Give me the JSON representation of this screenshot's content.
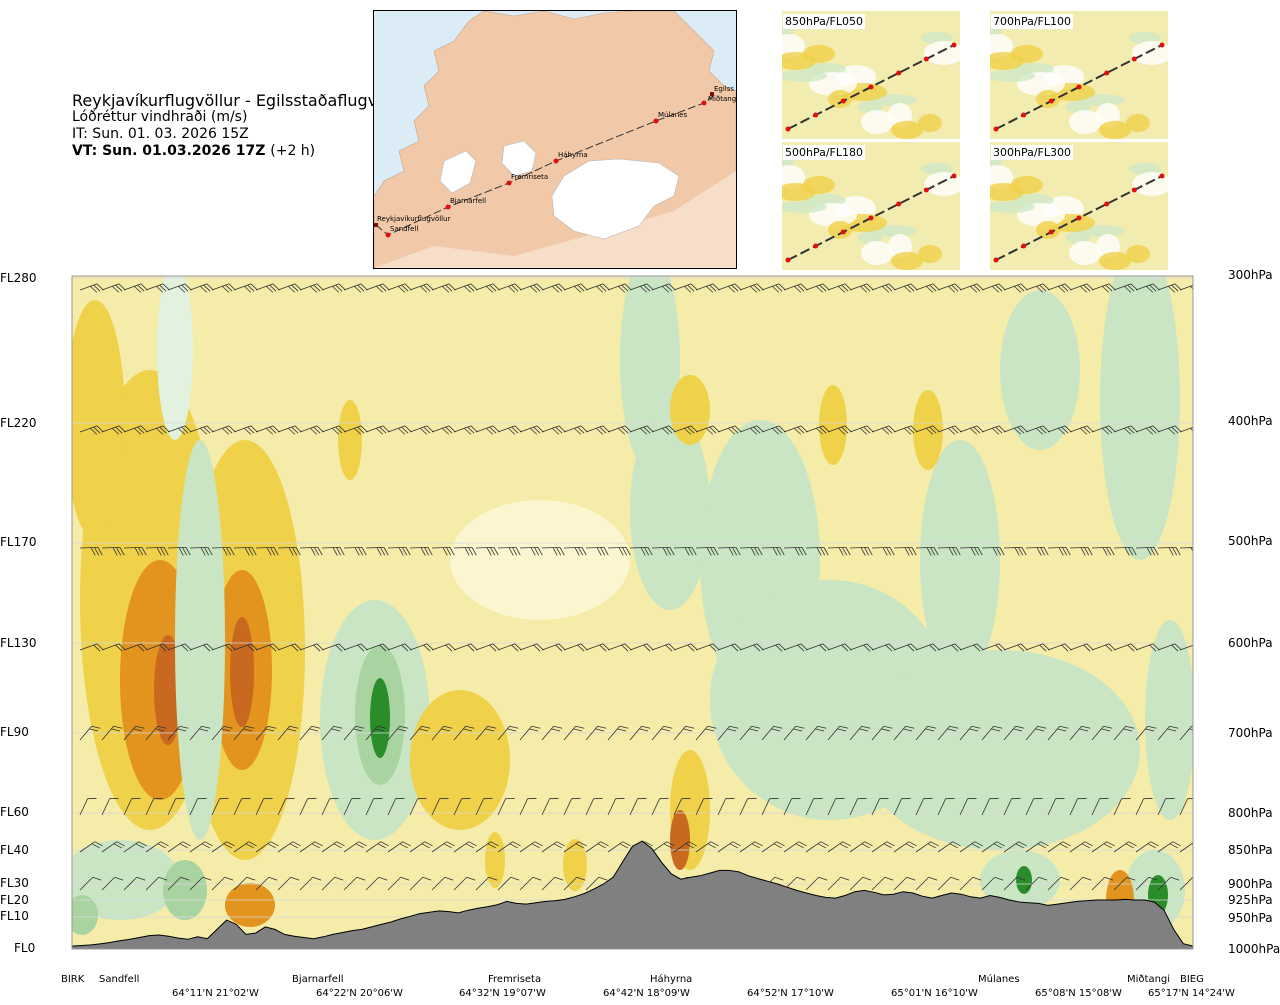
{
  "header": {
    "route": "Reykjavíkurflugvöllur - Egilsstaðaflugvöllur",
    "variable": "Lóðréttur vindhraði (m/s)",
    "issue_time": "IT: Sun. 01. 03. 2026 15Z",
    "valid_time": "VT: Sun. 01.03.2026 17Z",
    "lead": "(+2 h)"
  },
  "map": {
    "places": [
      "Reykjavíkurflugvöllur",
      "Sandfell",
      "Bjarnarfell",
      "Fremriseta",
      "Háhyrna",
      "Múlanes",
      "Egilss",
      "Miðtangi"
    ],
    "colors": {
      "sea": "#dcecf7",
      "land": "#f1c9a8",
      "glacier": "#ffffff",
      "route": "#333333",
      "waypoint": "#e01010"
    }
  },
  "mini_maps": [
    {
      "label": "850hPa/FL050"
    },
    {
      "label": "700hPa/FL100"
    },
    {
      "label": "500hPa/FL180"
    },
    {
      "label": "300hPa/FL300"
    }
  ],
  "chart_data": {
    "type": "heatmap",
    "title": "Reykjavíkurflugvöllur - Egilsstaðaflugvöllur",
    "colorbar": "Lóðréttur vindhraði (m/s)",
    "y_left_ticks": [
      "FL280",
      "FL220",
      "FL170",
      "FL130",
      "FL90",
      "FL60",
      "FL40",
      "FL30",
      "FL20",
      "FL10",
      "FL0"
    ],
    "y_right_ticks": [
      "300hPa",
      "400hPa",
      "500hPa",
      "600hPa",
      "700hPa",
      "800hPa",
      "850hPa",
      "900hPa",
      "925hPa",
      "950hPa",
      "1000hPa"
    ],
    "pressure_hpa": [
      300,
      400,
      500,
      600,
      700,
      800,
      850,
      900,
      925,
      950,
      1000
    ],
    "x_waypoints": [
      "BIRK",
      "Sandfell",
      "Bjarnarfell",
      "Fremriseta",
      "Háhyrna",
      "Múlanes",
      "Miðtangi",
      "BIEG"
    ],
    "x_coordinates": [
      "64°11'N 21°02'W",
      "64°22'N 20°06'W",
      "64°32'N 19°07'W",
      "64°42'N 18°09'W",
      "64°52'N 17°10'W",
      "65°01'N 16°10'W",
      "65°08'N 15°08'W",
      "65°17'N 14°24'W"
    ],
    "terrain_profile_hpa": [
      997,
      996,
      995,
      993,
      991,
      988,
      986,
      983,
      980,
      979,
      981,
      984,
      986,
      982,
      985,
      970,
      955,
      962,
      978,
      976,
      966,
      970,
      978,
      981,
      983,
      985,
      982,
      978,
      975,
      972,
      970,
      966,
      962,
      958,
      953,
      949,
      945,
      943,
      941,
      942,
      944,
      940,
      937,
      935,
      932,
      927,
      930,
      931,
      929,
      927,
      926,
      924,
      920,
      915,
      908,
      900,
      890,
      867,
      845,
      838,
      848,
      868,
      885,
      893,
      890,
      888,
      884,
      880,
      880,
      882,
      888,
      892,
      896,
      900,
      905,
      910,
      914,
      918,
      921,
      922,
      918,
      912,
      910,
      913,
      917,
      916,
      912,
      914,
      919,
      922,
      918,
      914,
      916,
      920,
      922,
      918,
      921,
      925,
      928,
      929,
      930,
      933,
      931,
      929,
      927,
      926,
      925,
      925,
      925,
      924,
      925,
      925,
      928,
      940,
      970,
      993,
      997
    ],
    "colors": {
      "strong_down": "#2a8d2a",
      "down": "#c9e5c4",
      "weak": "#f4eca8",
      "up": "#f0d14a",
      "strong_up": "#c8691f",
      "terrain": "#808080"
    }
  }
}
